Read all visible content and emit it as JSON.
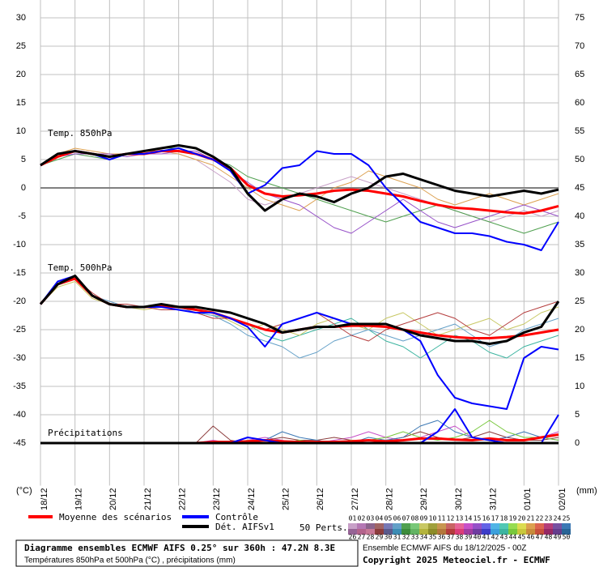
{
  "chart_data": {
    "type": "line",
    "annotations": [
      "Temp. 850hPa",
      "Temp. 500hPa",
      "Précipitations"
    ],
    "y_unit": "(°C)",
    "y2_unit": "(mm)",
    "x": [
      0,
      12,
      24,
      36,
      48,
      60,
      72,
      84,
      96,
      108,
      120,
      132,
      144,
      156,
      168,
      180,
      192,
      204,
      216,
      228,
      240,
      252,
      264,
      276,
      288,
      300,
      312,
      324,
      336,
      348,
      360
    ],
    "xlim": [
      0,
      360
    ],
    "xticks": [
      {
        "value": 0,
        "label": "18/12"
      },
      {
        "value": 24,
        "label": "19/12"
      },
      {
        "value": 48,
        "label": "20/12"
      },
      {
        "value": 72,
        "label": "21/12"
      },
      {
        "value": 96,
        "label": "22/12"
      },
      {
        "value": 120,
        "label": "23/12"
      },
      {
        "value": 144,
        "label": "24/12"
      },
      {
        "value": 168,
        "label": "25/12"
      },
      {
        "value": 192,
        "label": "26/12"
      },
      {
        "value": 216,
        "label": "27/12"
      },
      {
        "value": 240,
        "label": "28/12"
      },
      {
        "value": 264,
        "label": "29/12"
      },
      {
        "value": 288,
        "label": "30/12"
      },
      {
        "value": 312,
        "label": "31/12"
      },
      {
        "value": 336,
        "label": "01/01"
      },
      {
        "value": 360,
        "label": "02/01"
      }
    ],
    "ylim": [
      -52.5,
      30
    ],
    "yticks": [
      -45,
      -40,
      -35,
      -30,
      -25,
      -20,
      -15,
      -10,
      -5,
      0,
      5,
      10,
      15,
      20,
      25,
      30
    ],
    "y2lim": [
      -7.5,
      75
    ],
    "y2ticks": [
      0,
      5,
      10,
      15,
      20,
      25,
      30,
      35,
      40,
      45,
      50,
      55,
      60,
      65,
      70,
      75
    ],
    "grid": true,
    "legend": [
      {
        "name": "Moyenne des scénarios",
        "color": "#ff0000"
      },
      {
        "name": "Contrôle",
        "color": "#0000ff"
      },
      {
        "name": "Dét. AIFSv1",
        "color": "#000000"
      }
    ],
    "perturbations": {
      "label": "50 Perts.",
      "members": [
        {
          "name": "01",
          "color": "#c8a0c8"
        },
        {
          "name": "02",
          "color": "#b478b4"
        },
        {
          "name": "03",
          "color": "#8c648c"
        },
        {
          "name": "04",
          "color": "#a06464"
        },
        {
          "name": "05",
          "color": "#7878b4"
        },
        {
          "name": "06",
          "color": "#64a0c8"
        },
        {
          "name": "07",
          "color": "#50a050"
        },
        {
          "name": "08",
          "color": "#78c878"
        },
        {
          "name": "09",
          "color": "#c8c864"
        },
        {
          "name": "10",
          "color": "#a0a03c"
        },
        {
          "name": "11",
          "color": "#c89650"
        },
        {
          "name": "12",
          "color": "#c86464"
        },
        {
          "name": "13",
          "color": "#e66496"
        },
        {
          "name": "14",
          "color": "#c850c8"
        },
        {
          "name": "15",
          "color": "#9650c8"
        },
        {
          "name": "16",
          "color": "#6464e6"
        },
        {
          "name": "17",
          "color": "#50b4e6"
        },
        {
          "name": "18",
          "color": "#50c8b4"
        },
        {
          "name": "19",
          "color": "#96dc50"
        },
        {
          "name": "20",
          "color": "#dcdc50"
        },
        {
          "name": "21",
          "color": "#dca050"
        },
        {
          "name": "22",
          "color": "#dc6450"
        },
        {
          "name": "23",
          "color": "#b43c78"
        },
        {
          "name": "24",
          "color": "#7850a0"
        },
        {
          "name": "25",
          "color": "#3c78b4"
        },
        {
          "name": "26",
          "color": "#966496"
        },
        {
          "name": "27",
          "color": "#b4648c"
        },
        {
          "name": "28",
          "color": "#c87896"
        },
        {
          "name": "29",
          "color": "#8c3c3c"
        },
        {
          "name": "30",
          "color": "#5a5a8c"
        },
        {
          "name": "31",
          "color": "#3c8cb4"
        },
        {
          "name": "32",
          "color": "#3c8c3c"
        },
        {
          "name": "33",
          "color": "#64b464"
        },
        {
          "name": "34",
          "color": "#b4b43c"
        },
        {
          "name": "35",
          "color": "#8c8c28"
        },
        {
          "name": "36",
          "color": "#b4783c"
        },
        {
          "name": "37",
          "color": "#b43c3c"
        },
        {
          "name": "38",
          "color": "#dc3c78"
        },
        {
          "name": "39",
          "color": "#a03ca0"
        },
        {
          "name": "40",
          "color": "#6e3ca0"
        },
        {
          "name": "41",
          "color": "#3c3cc8"
        },
        {
          "name": "42",
          "color": "#3ca0dc"
        },
        {
          "name": "43",
          "color": "#3cb4a0"
        },
        {
          "name": "44",
          "color": "#78c83c"
        },
        {
          "name": "45",
          "color": "#c8c83c"
        },
        {
          "name": "46",
          "color": "#c88c3c"
        },
        {
          "name": "47",
          "color": "#c8503c"
        },
        {
          "name": "48",
          "color": "#962864"
        },
        {
          "name": "49",
          "color": "#643c8c"
        },
        {
          "name": "50",
          "color": "#286496"
        }
      ]
    },
    "series": [
      {
        "color": "#c8a0c8",
        "line_width": 1,
        "values": [
          4,
          5.5,
          6.5,
          6,
          5.5,
          6,
          6,
          6,
          6,
          5,
          3,
          1,
          -2,
          -3,
          -2,
          -1,
          0,
          1,
          2,
          1,
          0,
          -1,
          -2,
          -3,
          -4,
          -5,
          -6,
          -5,
          -4,
          -5,
          -4
        ]
      },
      {
        "color": "#50a050",
        "line_width": 1,
        "values": [
          4,
          5,
          6,
          5.5,
          5,
          6,
          6.5,
          7,
          7,
          6,
          5,
          4,
          2,
          1,
          0,
          -1,
          -2,
          -3,
          -4,
          -5,
          -6,
          -5,
          -4,
          -3,
          -4,
          -5,
          -6,
          -7,
          -8,
          -7,
          -6
        ]
      },
      {
        "color": "#dca050",
        "line_width": 1,
        "values": [
          4,
          6,
          7,
          6.5,
          6,
          6,
          6.5,
          6.5,
          6,
          5,
          4,
          2,
          0,
          -2,
          -3,
          -4,
          -2,
          0,
          1,
          3,
          2,
          1,
          0,
          -2,
          -3,
          -2,
          -1,
          -2,
          -3,
          -2,
          -1
        ]
      },
      {
        "color": "#9650c8",
        "line_width": 1,
        "values": [
          4,
          5.5,
          6,
          6,
          6,
          5.5,
          6,
          6,
          6.5,
          6.5,
          5,
          3,
          1,
          -1,
          -2,
          -3,
          -5,
          -7,
          -8,
          -6,
          -4,
          -2,
          -4,
          -6,
          -7,
          -6,
          -5,
          -4,
          -3,
          -4,
          -5
        ]
      },
      {
        "color": "#3cb4a0",
        "line_width": 1,
        "values": [
          -20.5,
          -17,
          -16,
          -19,
          -20.5,
          -21,
          -21,
          -21,
          -21.5,
          -22,
          -22.5,
          -23,
          -24,
          -26,
          -27,
          -26,
          -25,
          -24,
          -23,
          -25,
          -27,
          -28,
          -30,
          -28,
          -26,
          -27,
          -29,
          -30,
          -28,
          -27,
          -26
        ]
      },
      {
        "color": "#c8c864",
        "line_width": 1,
        "values": [
          -20.5,
          -17.5,
          -16.5,
          -19.5,
          -20.5,
          -21,
          -21.5,
          -21,
          -21,
          -21.5,
          -22,
          -23.5,
          -25,
          -24,
          -25,
          -26,
          -24,
          -23,
          -24,
          -25,
          -23,
          -22,
          -24,
          -26,
          -25,
          -24,
          -23,
          -25,
          -24,
          -22,
          -21
        ]
      },
      {
        "color": "#64a0c8",
        "line_width": 1,
        "values": [
          -20.5,
          -16.5,
          -16,
          -19,
          -20,
          -21,
          -21,
          -21,
          -21,
          -22,
          -22.5,
          -24,
          -26,
          -27,
          -28,
          -30,
          -29,
          -27,
          -26,
          -25,
          -26,
          -27,
          -26,
          -25,
          -24,
          -26,
          -28,
          -27,
          -25,
          -24,
          -23
        ]
      },
      {
        "color": "#b43c3c",
        "line_width": 1,
        "values": [
          -20.5,
          -17,
          -16,
          -18.5,
          -20.5,
          -20.5,
          -21,
          -21.5,
          -21.5,
          -22,
          -23,
          -23,
          -24,
          -25,
          -24,
          -23,
          -22,
          -24,
          -26,
          -27,
          -25,
          -24,
          -23,
          -22,
          -23,
          -25,
          -26,
          -24,
          -22,
          -21,
          -20
        ]
      },
      {
        "color": "#c850c8",
        "line_width": 1,
        "axis": "y2",
        "values": [
          0,
          0,
          0,
          0,
          0,
          0,
          0,
          0,
          0,
          0,
          0.5,
          0,
          0.5,
          1,
          0.5,
          0,
          0,
          0.5,
          1,
          2,
          1,
          0.5,
          1,
          2,
          3,
          1,
          0.5,
          1,
          0.5,
          1,
          2
        ]
      },
      {
        "color": "#8c3c3c",
        "line_width": 1,
        "axis": "y2",
        "values": [
          0,
          0,
          0,
          0,
          0,
          0,
          0,
          0,
          0,
          0,
          3,
          0.5,
          0,
          0.5,
          1,
          0.5,
          0.5,
          1,
          0.5,
          0,
          0.5,
          1,
          2,
          1,
          0.5,
          1,
          2,
          1,
          0.5,
          0.5,
          1
        ]
      },
      {
        "color": "#3c78b4",
        "line_width": 1,
        "axis": "y2",
        "values": [
          0,
          0,
          0,
          0,
          0,
          0,
          0,
          0,
          0,
          0,
          0,
          0,
          0,
          0.5,
          2,
          1,
          0.5,
          0,
          0,
          1,
          0.5,
          1,
          3,
          4,
          2,
          1,
          0.5,
          1,
          2,
          1,
          0.5
        ]
      },
      {
        "color": "#78c83c",
        "line_width": 1,
        "axis": "y2",
        "values": [
          0,
          0,
          0,
          0,
          0,
          0,
          0,
          0,
          0,
          0,
          0,
          0,
          0.5,
          0,
          0,
          0.5,
          0,
          0,
          0.5,
          0.5,
          1,
          2,
          1,
          0.5,
          1,
          2,
          4,
          2,
          1,
          1,
          0.5
        ]
      },
      {
        "color": "#ff0000",
        "line_width": 3,
        "values": [
          4,
          5.5,
          6.5,
          6,
          5.5,
          6,
          6,
          6.5,
          6.5,
          6,
          5,
          3.5,
          0.5,
          -1,
          -1.5,
          -1.3,
          -1,
          -0.5,
          -0.3,
          -0.5,
          -1,
          -1.5,
          -2.3,
          -3,
          -3.5,
          -3.7,
          -4,
          -4.3,
          -4.5,
          -4,
          -3.2
        ]
      },
      {
        "color": "#ff0000",
        "line_width": 3,
        "values": [
          -20.5,
          -17,
          -16,
          -19,
          -20.5,
          -21,
          -21,
          -20.8,
          -21,
          -21.5,
          -22,
          -23,
          -24,
          -25,
          -25.5,
          -25,
          -24.5,
          -24.5,
          -24.3,
          -24.3,
          -24.5,
          -25,
          -25.5,
          -26,
          -26.3,
          -26.5,
          -26.5,
          -26.3,
          -26,
          -25.5,
          -25
        ]
      },
      {
        "color": "#ff0000",
        "line_width": 3,
        "axis": "y2",
        "values": [
          0,
          0,
          0,
          0,
          0,
          0,
          0,
          0,
          0,
          0,
          0.2,
          0.2,
          0.3,
          0.5,
          0.3,
          0.2,
          0.2,
          0.2,
          0.3,
          0.5,
          0.3,
          0.5,
          0.8,
          0.8,
          0.6,
          0.5,
          0.8,
          0.5,
          0.5,
          1,
          1.5
        ]
      },
      {
        "color": "#0000ff",
        "line_width": 2,
        "values": [
          4,
          6,
          6.5,
          6,
          5,
          6,
          6,
          6.5,
          7,
          6,
          5,
          3,
          -1,
          0.5,
          3.5,
          4,
          6.5,
          6,
          6,
          4,
          0,
          -3,
          -6,
          -7,
          -8,
          -8,
          -8.5,
          -9.5,
          -10,
          -11,
          -6
        ]
      },
      {
        "color": "#0000ff",
        "line_width": 2,
        "values": [
          -20.5,
          -16.5,
          -15.5,
          -19,
          -20.5,
          -21,
          -21,
          -21,
          -21.5,
          -22,
          -22,
          -23,
          -24.5,
          -28,
          -24,
          -23,
          -22,
          -23,
          -24,
          -24,
          -24,
          -25,
          -27,
          -33,
          -37,
          -38,
          -38.5,
          -39,
          -30,
          -28,
          -28.5
        ]
      },
      {
        "color": "#0000ff",
        "line_width": 2,
        "axis": "y2",
        "values": [
          0,
          0,
          0,
          0,
          0,
          0,
          0,
          0,
          0,
          0,
          0,
          0,
          1,
          0.5,
          0,
          0,
          0,
          0,
          0,
          0,
          0,
          0,
          0,
          2,
          6,
          1,
          0.5,
          0,
          0,
          0,
          5
        ]
      },
      {
        "color": "#000000",
        "line_width": 3,
        "values": [
          4,
          6,
          6.5,
          6,
          5.5,
          6,
          6.5,
          7,
          7.5,
          7,
          5.5,
          3.5,
          -1,
          -4,
          -2,
          -1,
          -1.5,
          -2.5,
          -1,
          0,
          2,
          2.5,
          1.5,
          0.5,
          -0.5,
          -1,
          -1.5,
          -1,
          -0.5,
          -1,
          -0.3
        ]
      },
      {
        "color": "#000000",
        "line_width": 3,
        "values": [
          -20.5,
          -17,
          -15.5,
          -19,
          -20.5,
          -21,
          -21,
          -20.5,
          -21,
          -21,
          -21.5,
          -22,
          -23,
          -24,
          -25.5,
          -25,
          -24.5,
          -24.5,
          -24,
          -24,
          -24,
          -25,
          -26,
          -26.5,
          -27,
          -27,
          -27.5,
          -27,
          -25.5,
          -24.5,
          -20
        ]
      },
      {
        "color": "#000000",
        "line_width": 3,
        "axis": "y2",
        "values": [
          0,
          0,
          0,
          0,
          0,
          0,
          0,
          0,
          0,
          0,
          0,
          0,
          0,
          0,
          0,
          0,
          0,
          0,
          0,
          0,
          0,
          0,
          0,
          0,
          0,
          0,
          0,
          0,
          0,
          0,
          0
        ]
      }
    ]
  },
  "footer": {
    "title": "Diagramme ensembles ECMWF AIFS 0.25° sur 360h : 47.2N 8.3E",
    "subtitle": "Températures 850hPa et 500hPa (°C) , précipitations (mm)",
    "run": "Ensemble ECMWF AIFS du 18/12/2025 - 00Z",
    "copyright": "Copyright 2025 Meteociel.fr - ECMWF"
  }
}
